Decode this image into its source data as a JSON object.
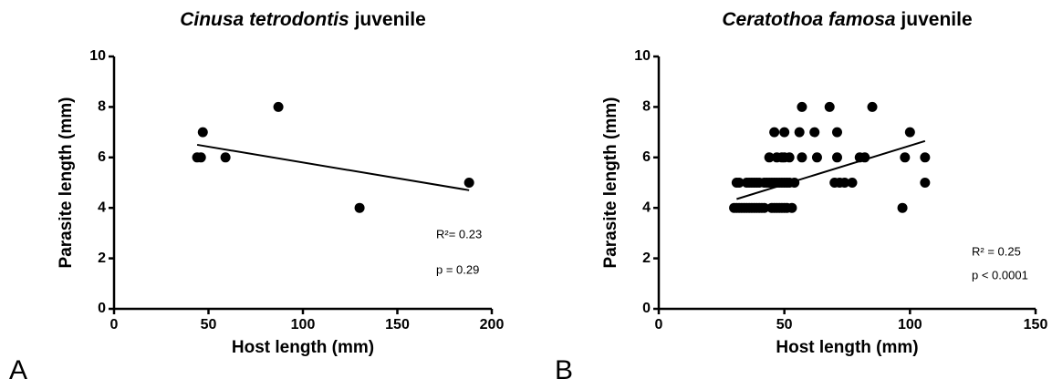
{
  "chart_data": [
    {
      "type": "scatter",
      "panel": "A",
      "title": {
        "species": "Cinusa tetrodontis",
        "stage": "juvenile"
      },
      "x_label": "Host length (mm)",
      "y_label": "Parasite length (mm)",
      "x": [
        44,
        46,
        47,
        59,
        87,
        130,
        188
      ],
      "values": [
        6,
        6,
        7,
        6,
        8,
        4,
        5
      ],
      "color": "#000000",
      "fit": {
        "x": [
          44,
          188
        ],
        "y": [
          6.5,
          4.7
        ]
      },
      "annotations": [
        "R²= 0.23",
        "p = 0.29"
      ],
      "xlim": [
        0,
        200
      ],
      "xticks": [
        0,
        50,
        100,
        150,
        200
      ],
      "ylim": [
        0,
        10
      ],
      "yticks": [
        0,
        2,
        4,
        6,
        8,
        10
      ]
    },
    {
      "type": "scatter",
      "panel": "B",
      "title": {
        "species": "Ceratothoa famosa",
        "stage": "juvenile"
      },
      "x_label": "Host length (mm)",
      "y_label": "Parasite length (mm)",
      "x": [
        30,
        31,
        32,
        33,
        34,
        35,
        36,
        37,
        38,
        39,
        40,
        41,
        42,
        45,
        46,
        47,
        48,
        49,
        50,
        51,
        53,
        97,
        31,
        32,
        35,
        36,
        37,
        38,
        39,
        40,
        42,
        43,
        44,
        45,
        46,
        47,
        48,
        49,
        50,
        51,
        52,
        54,
        70,
        72,
        74,
        77,
        106,
        44,
        47,
        49,
        50,
        52,
        57,
        63,
        71,
        80,
        82,
        98,
        106,
        46,
        50,
        56,
        62,
        71,
        100,
        57,
        68,
        85
      ],
      "values": [
        4,
        4,
        4,
        4,
        4,
        4,
        4,
        4,
        4,
        4,
        4,
        4,
        4,
        4,
        4,
        4,
        4,
        4,
        4,
        4,
        4,
        4,
        5,
        5,
        5,
        5,
        5,
        5,
        5,
        5,
        5,
        5,
        5,
        5,
        5,
        5,
        5,
        5,
        5,
        5,
        5,
        5,
        5,
        5,
        5,
        5,
        5,
        6,
        6,
        6,
        6,
        6,
        6,
        6,
        6,
        6,
        6,
        6,
        6,
        7,
        7,
        7,
        7,
        7,
        7,
        8,
        8,
        8
      ],
      "color": "#000000",
      "fit": {
        "x": [
          31,
          106
        ],
        "y": [
          4.35,
          6.65
        ]
      },
      "annotations": [
        "R² = 0.25",
        "p < 0.0001"
      ],
      "xlim": [
        0,
        150
      ],
      "xticks": [
        0,
        50,
        100,
        150
      ],
      "ylim": [
        0,
        10
      ],
      "yticks": [
        0,
        2,
        4,
        6,
        8,
        10
      ]
    }
  ]
}
